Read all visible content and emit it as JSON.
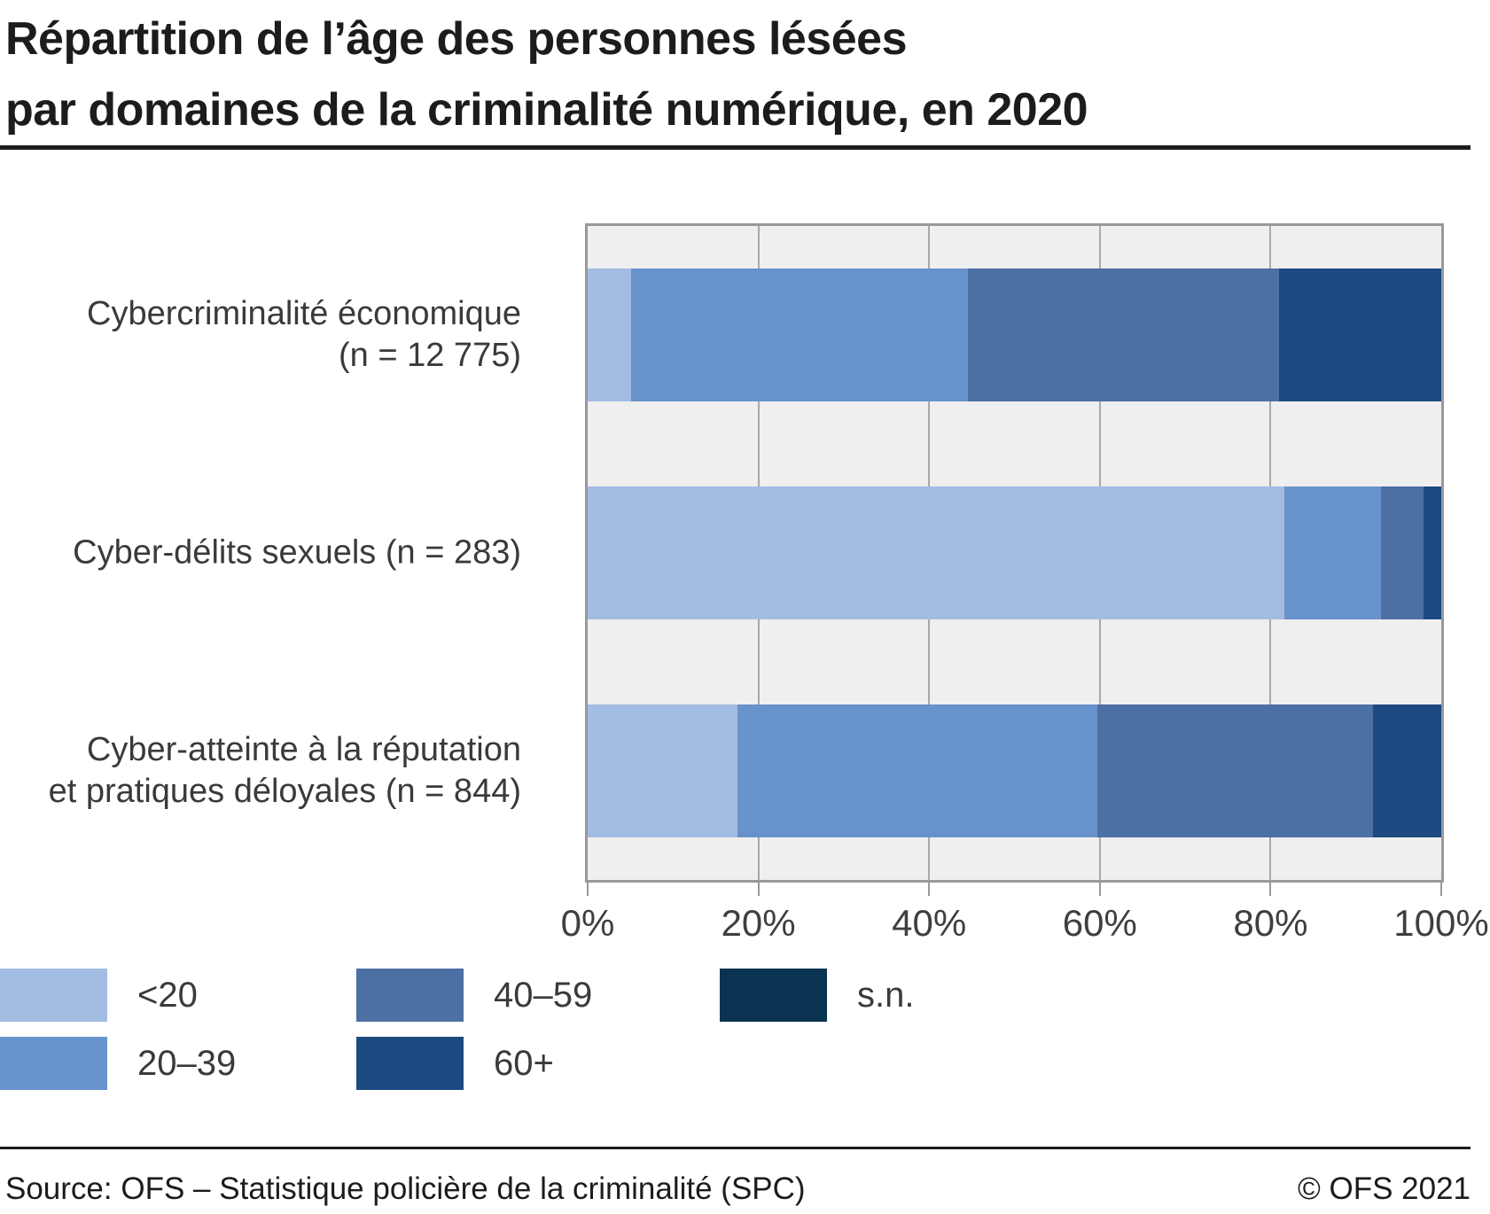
{
  "title": {
    "line1": "Répartition de l’âge des personnes lésées",
    "line2": "par domaines de la criminalité numérique, en 2020"
  },
  "chart_data": {
    "type": "bar",
    "orientation": "horizontal",
    "stacked": true,
    "unit": "%",
    "title": "Répartition de l’âge des personnes lésées par domaines de la criminalité numérique, en 2020",
    "categories": [
      {
        "name": "Cybercriminalité économique (n = 12 775)",
        "label_lines": [
          "Cybercriminalité économique",
          "(n = 12 775)"
        ]
      },
      {
        "name": "Cyber-délits sexuels (n = 283)",
        "label_lines": [
          "Cyber-délits sexuels (n = 283)"
        ]
      },
      {
        "name": "Cyber-atteinte à la réputation et pratiques déloyales (n = 844)",
        "label_lines": [
          "Cyber-atteinte à la réputation",
          "et pratiques déloyales (n = 844)"
        ]
      }
    ],
    "series": [
      {
        "name": "<20",
        "color": "#a3bce2",
        "values": [
          5.1,
          81.6,
          17.5
        ]
      },
      {
        "name": "20–39",
        "color": "#6892cb",
        "values": [
          39.4,
          11.3,
          42.2
        ]
      },
      {
        "name": "40–59",
        "color": "#4c6fa4",
        "values": [
          36.5,
          5.0,
          32.3
        ]
      },
      {
        "name": "60+",
        "color": "#1d4a80",
        "values": [
          19.0,
          2.1,
          8.0
        ]
      },
      {
        "name": "s.n.",
        "color": "#093350",
        "values": [
          0,
          0,
          0
        ]
      }
    ],
    "x_axis": {
      "min": 0,
      "max": 100,
      "tick_values": [
        0,
        20,
        40,
        60,
        80,
        100
      ],
      "tick_labels": [
        "0%",
        "20%",
        "40%",
        "60%",
        "80%",
        "100%"
      ],
      "grid": true
    },
    "legend_position": "bottom",
    "plot_background": "#efefef",
    "gridline_color": "#a9a9a9"
  },
  "footer": {
    "source": "Source: OFS – Statistique policière de la criminalité (SPC)",
    "copyright": "© OFS 2021"
  }
}
